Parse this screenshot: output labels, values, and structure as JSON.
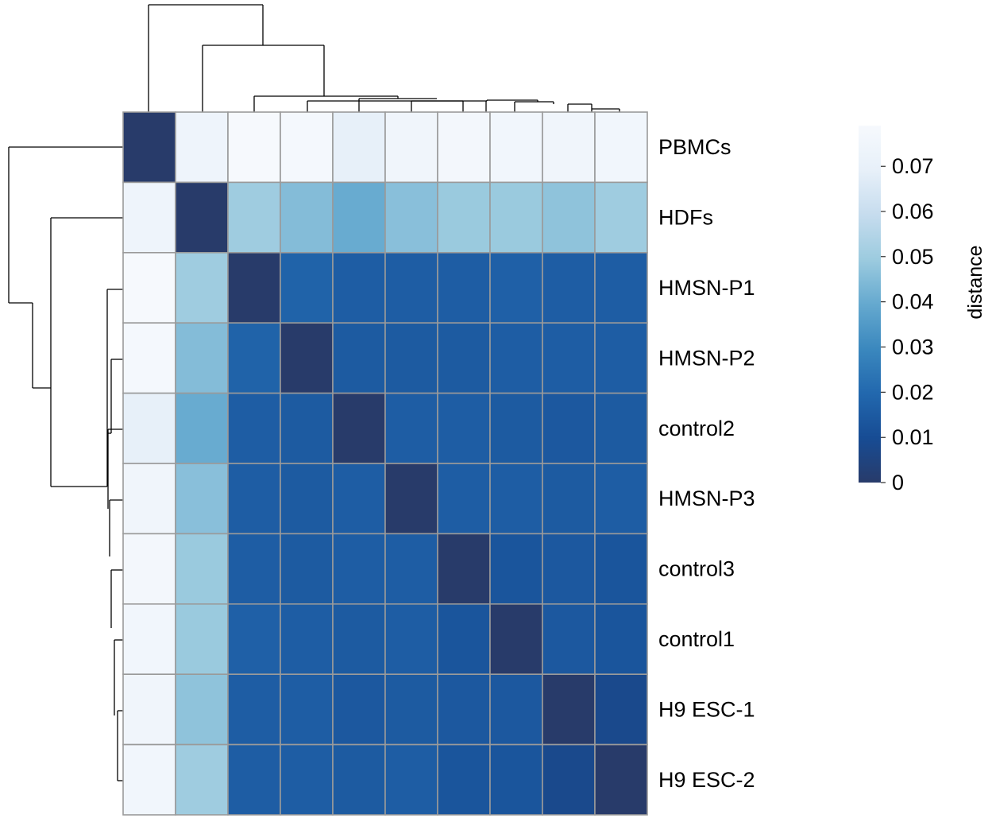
{
  "chart_data": {
    "type": "heatmap",
    "title": "",
    "rows": [
      "PBMCs",
      "HDFs",
      "HMSN-P1",
      "HMSN-P2",
      "control2",
      "HMSN-P3",
      "control3",
      "control1",
      "H9 ESC-1",
      "H9 ESC-2"
    ],
    "columns": [
      "PBMCs",
      "HDFs",
      "HMSN-P1",
      "HMSN-P2",
      "control2",
      "HMSN-P3",
      "control3",
      "control1",
      "H9 ESC-1",
      "H9 ESC-2"
    ],
    "values": [
      [
        0.0,
        0.074,
        0.079,
        0.078,
        0.069,
        0.075,
        0.077,
        0.076,
        0.075,
        0.076
      ],
      [
        0.074,
        0.0,
        0.05,
        0.045,
        0.04,
        0.046,
        0.049,
        0.049,
        0.047,
        0.05
      ],
      [
        0.079,
        0.05,
        0.0,
        0.018,
        0.016,
        0.016,
        0.016,
        0.017,
        0.016,
        0.016
      ],
      [
        0.078,
        0.045,
        0.018,
        0.0,
        0.015,
        0.015,
        0.015,
        0.016,
        0.016,
        0.016
      ],
      [
        0.069,
        0.04,
        0.016,
        0.015,
        0.0,
        0.016,
        0.016,
        0.015,
        0.014,
        0.015
      ],
      [
        0.075,
        0.046,
        0.016,
        0.015,
        0.016,
        0.0,
        0.016,
        0.016,
        0.015,
        0.016
      ],
      [
        0.077,
        0.049,
        0.016,
        0.015,
        0.016,
        0.016,
        0.0,
        0.013,
        0.014,
        0.013
      ],
      [
        0.076,
        0.049,
        0.017,
        0.016,
        0.015,
        0.016,
        0.013,
        0.0,
        0.014,
        0.013
      ],
      [
        0.075,
        0.047,
        0.016,
        0.016,
        0.014,
        0.015,
        0.014,
        0.014,
        0.0,
        0.008
      ],
      [
        0.076,
        0.05,
        0.016,
        0.016,
        0.015,
        0.016,
        0.013,
        0.013,
        0.008,
        0.0
      ]
    ],
    "colorbar": {
      "label": "distance",
      "min": 0,
      "max": 0.079,
      "ticks": [
        "0",
        "0.01",
        "0.02",
        "0.03",
        "0.04",
        "0.05",
        "0.06",
        "0.07"
      ],
      "tick_values": [
        0,
        0.01,
        0.02,
        0.03,
        0.04,
        0.05,
        0.06,
        0.07
      ],
      "colormap": [
        "#283b6a",
        "#174c94",
        "#2268ae",
        "#3b88be",
        "#65a9cf",
        "#9ccbdf",
        "#c6dcee",
        "#e7f0f9",
        "#f6f9fd"
      ]
    },
    "dendrogram": {
      "note": "",
      "merge_heights": [
        0.008,
        0.013,
        0.014,
        0.015,
        0.015,
        0.016,
        0.016,
        0.045,
        0.075
      ]
    }
  }
}
